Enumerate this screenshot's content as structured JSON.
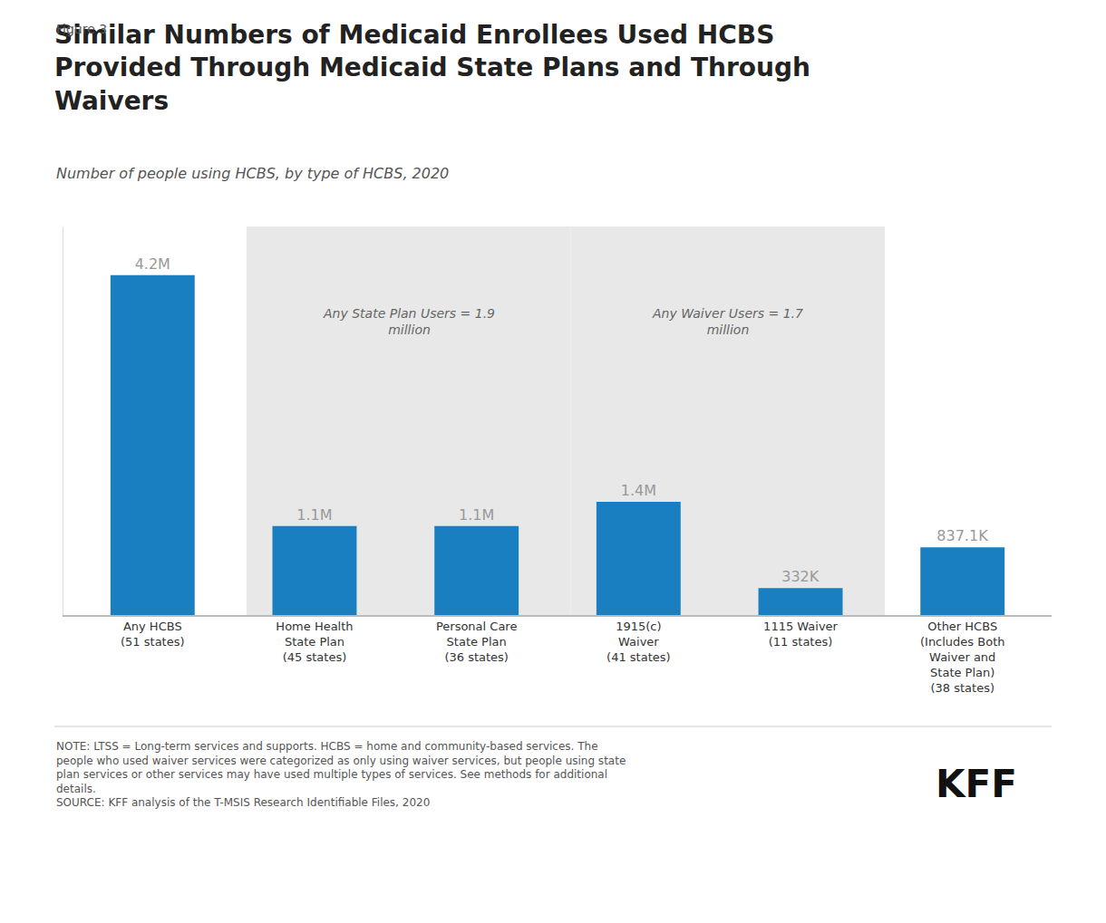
{
  "chart_data": {
    "type": "bar",
    "title": "Similar Numbers of Medicaid Enrollees Used HCBS\nProvided Through Medicaid State Plans and Through\nWaivers",
    "subtitle": "Number of people using HCBS, by type of HCBS, 2020",
    "categories": [
      "Any HCBS\n(51 states)",
      "Home Health\nState Plan\n(45 states)",
      "Personal Care\nState Plan\n(36 states)",
      "1915(c)\nWaiver\n(41 states)",
      "1115 Waiver\n(11 states)",
      "Other HCBS\n(Includes Both\nWaiver and\nState Plan)\n(38 states)"
    ],
    "values": [
      4200000,
      1100000,
      1100000,
      1400000,
      332000,
      837100
    ],
    "value_labels": [
      "4.2M",
      "1.1M",
      "1.1M",
      "1.4M",
      "332K",
      "837.1K"
    ],
    "data_labels": true,
    "color": "#1a7fc1",
    "ylim": [
      0,
      4800000
    ],
    "grid": false,
    "tick_labels": "x",
    "annotations": [
      "Figure 3",
      "Any State Plan Users = 1.9\nmillion",
      "Any Waiver Users = 1.7\nmillion",
      "NOTE: LTSS = Long-term services and supports. HCBS = home and community-based services. The\npeople who used waiver services were categorized as only using waiver services, but people using state\nplan services or other services may have used multiple types of services. See methods for additional\ndetails.\nSOURCE: KFF analysis of the T-MSIS Research Identifiable Files, 2020",
      "KFF"
    ]
  }
}
